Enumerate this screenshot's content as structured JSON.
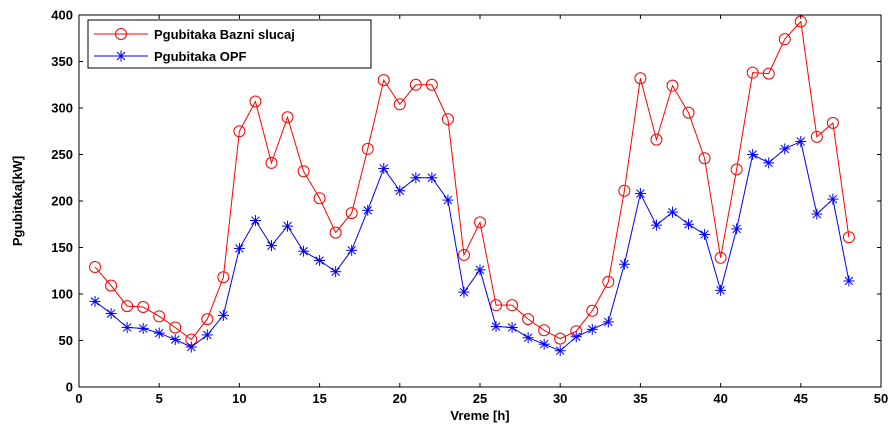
{
  "chart_data": {
    "type": "line",
    "xlabel": "Vreme [h]",
    "ylabel": "Pgubitaka[kW]",
    "xlim": [
      0,
      50
    ],
    "ylim": [
      0,
      400
    ],
    "xticks": [
      0,
      5,
      10,
      15,
      20,
      25,
      30,
      35,
      40,
      45,
      50
    ],
    "yticks": [
      0,
      50,
      100,
      150,
      200,
      250,
      300,
      350,
      400
    ],
    "grid": false,
    "legend_position": "top-left",
    "x": [
      1,
      2,
      3,
      4,
      5,
      6,
      7,
      8,
      9,
      10,
      11,
      12,
      13,
      14,
      15,
      16,
      17,
      18,
      19,
      20,
      21,
      22,
      23,
      24,
      25,
      26,
      27,
      28,
      29,
      30,
      31,
      32,
      33,
      34,
      35,
      36,
      37,
      38,
      39,
      40,
      41,
      42,
      43,
      44,
      45,
      46,
      47,
      48
    ],
    "series": [
      {
        "name": "Pgubitaka Bazni slucaj",
        "color": "#ff0000",
        "marker": "circle",
        "values": [
          129,
          109,
          87,
          86,
          76,
          64,
          51,
          73,
          118,
          275,
          307,
          241,
          290,
          232,
          203,
          166,
          187,
          256,
          330,
          304,
          325,
          325,
          288,
          142,
          177,
          88,
          88,
          73,
          61,
          52,
          60,
          82,
          113,
          211,
          332,
          266,
          324,
          295,
          246,
          139,
          234,
          338,
          337,
          374,
          393,
          269,
          284,
          161
        ]
      },
      {
        "name": "Pgubitaka OPF",
        "color": "#0000ff",
        "marker": "star",
        "values": [
          92,
          79,
          64,
          63,
          58,
          51,
          43,
          56,
          77,
          149,
          179,
          152,
          173,
          146,
          136,
          124,
          147,
          190,
          235,
          211,
          225,
          225,
          201,
          102,
          126,
          65,
          64,
          53,
          46,
          39,
          54,
          62,
          70,
          132,
          208,
          174,
          188,
          175,
          164,
          104,
          170,
          250,
          241,
          256,
          264,
          186,
          202,
          114
        ]
      }
    ]
  }
}
